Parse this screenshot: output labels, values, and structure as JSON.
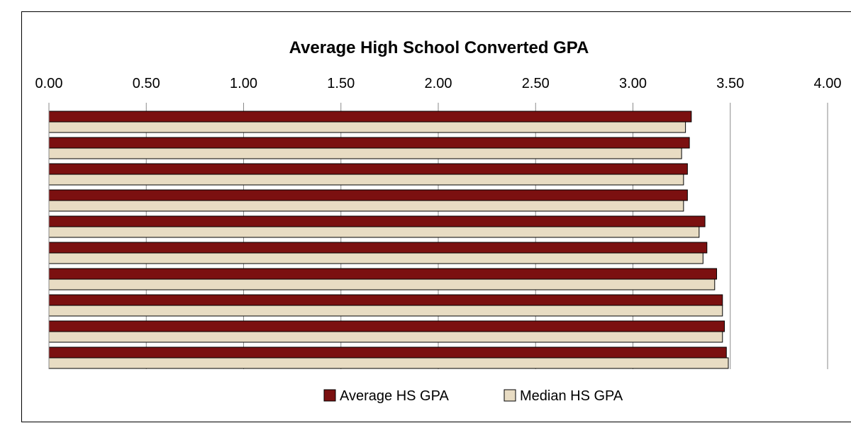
{
  "chart_data": {
    "type": "bar",
    "orientation": "horizontal",
    "title": "Average High School Converted GPA",
    "xlabel": "",
    "ylabel": "",
    "xlim": [
      0,
      4
    ],
    "x_ticks": [
      "0.00",
      "0.50",
      "1.00",
      "1.50",
      "2.00",
      "2.50",
      "3.00",
      "3.50",
      "4.00"
    ],
    "x_axis_position": "top",
    "grid": "vertical",
    "categories": [
      "",
      "",
      "",
      "",
      "",
      "",
      "",
      "",
      "",
      ""
    ],
    "series": [
      {
        "name": "Average HS GPA",
        "color": "#7B1010",
        "values": [
          3.3,
          3.29,
          3.28,
          3.28,
          3.37,
          3.38,
          3.43,
          3.46,
          3.47,
          3.48
        ]
      },
      {
        "name": "Median HS GPA",
        "color": "#E8DCC3",
        "values": [
          3.27,
          3.25,
          3.26,
          3.26,
          3.34,
          3.36,
          3.42,
          3.46,
          3.46,
          3.49
        ]
      }
    ],
    "legend": "bottom"
  }
}
